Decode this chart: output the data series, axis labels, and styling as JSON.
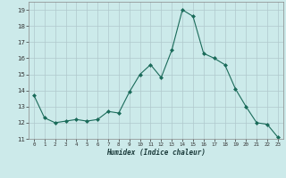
{
  "x": [
    0,
    1,
    2,
    3,
    4,
    5,
    6,
    7,
    8,
    9,
    10,
    11,
    12,
    13,
    14,
    15,
    16,
    17,
    18,
    19,
    20,
    21,
    22,
    23
  ],
  "y": [
    13.7,
    12.3,
    12.0,
    12.1,
    12.2,
    12.1,
    12.2,
    12.7,
    12.6,
    13.9,
    15.0,
    15.6,
    14.8,
    16.5,
    19.0,
    18.6,
    16.3,
    16.0,
    15.6,
    14.1,
    13.0,
    12.0,
    11.9,
    11.1
  ],
  "xlabel": "Humidex (Indice chaleur)",
  "bg_color": "#cceaea",
  "grid_color": "#b0c8cc",
  "line_color": "#1a6b5a",
  "marker_color": "#1a6b5a",
  "xlim": [
    -0.5,
    23.5
  ],
  "ylim": [
    11,
    19.5
  ],
  "yticks": [
    11,
    12,
    13,
    14,
    15,
    16,
    17,
    18,
    19
  ],
  "xticks": [
    0,
    1,
    2,
    3,
    4,
    5,
    6,
    7,
    8,
    9,
    10,
    11,
    12,
    13,
    14,
    15,
    16,
    17,
    18,
    19,
    20,
    21,
    22,
    23
  ]
}
